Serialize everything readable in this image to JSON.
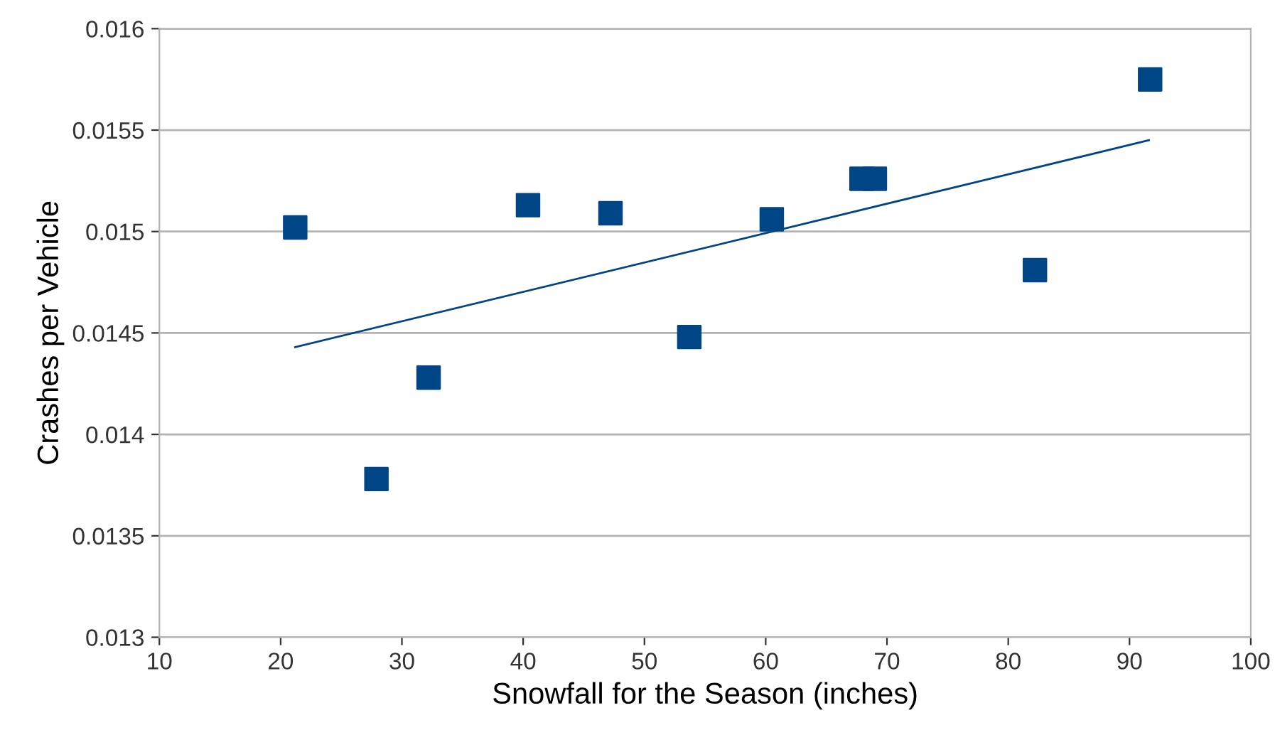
{
  "chart_data": {
    "type": "scatter",
    "xlabel": "Snowfall for the Season (inches)",
    "ylabel": "Crashes per Vehicle",
    "series": [
      {
        "color": "#004586",
        "marker": "square",
        "x": [
          21.2,
          27.9,
          32.2,
          40.4,
          47.2,
          53.7,
          60.5,
          67.9,
          69.0,
          82.2,
          91.7
        ],
        "values": [
          0.01502,
          0.01378,
          0.01428,
          0.01513,
          0.01509,
          0.01448,
          0.01506,
          0.01526,
          0.01526,
          0.01481,
          0.01575
        ]
      },
      {
        "type": "line",
        "color": "#004586",
        "marker": "none",
        "x": [
          21.2,
          91.6
        ],
        "values": [
          0.01443,
          0.01545
        ]
      }
    ],
    "xlim": [
      10,
      100
    ],
    "xticks": [
      10,
      20,
      30,
      40,
      50,
      60,
      70,
      80,
      90,
      100
    ],
    "ylim": [
      0.013,
      0.016
    ],
    "yticks": [
      0.013,
      0.0135,
      0.014,
      0.0145,
      0.015,
      0.0155,
      0.016
    ],
    "grid": "y"
  }
}
